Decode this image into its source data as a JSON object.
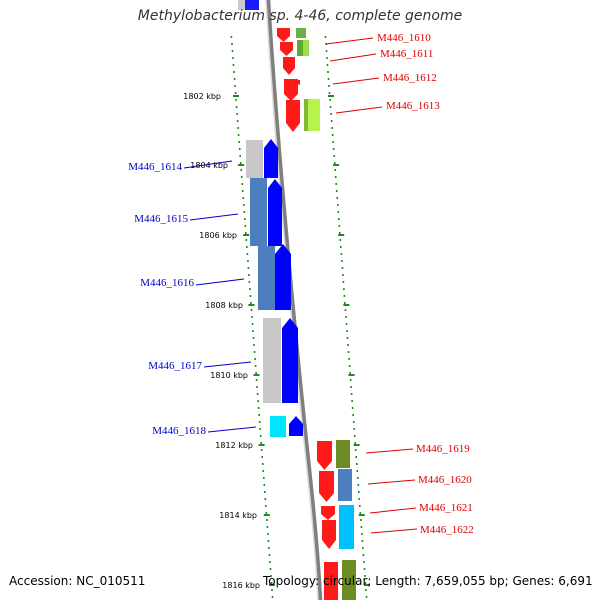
{
  "title": "Methylobacterium sp. 4-46, complete genome",
  "footer": {
    "accession": "Accession: NC_010511",
    "summary": "Topology: circular; Length: 7,659,055 bp; Genes: 6,691"
  },
  "colors": {
    "backbone": "#8c8c8c",
    "tick": "#1f8a1f",
    "reverse_gene": "#ff0000",
    "forward_gene": "#0000ff",
    "forward_label": "#0000cc",
    "reverse_label": "#dd0000",
    "ruler_label": "#000000"
  },
  "ruler": [
    {
      "label": "1802 kbp"
    },
    {
      "label": "1804 kbp"
    },
    {
      "label": "1806 kbp"
    },
    {
      "label": "1808 kbp"
    },
    {
      "label": "1810 kbp"
    },
    {
      "label": "1812 kbp"
    },
    {
      "label": "1814 kbp"
    },
    {
      "label": "1816 kbp"
    }
  ],
  "genes_reverse": [
    {
      "id": "M446_1610"
    },
    {
      "id": "M446_1611"
    },
    {
      "id": "M446_1612"
    },
    {
      "id": "M446_1613"
    },
    {
      "id": "M446_1619"
    },
    {
      "id": "M446_1620"
    },
    {
      "id": "M446_1621"
    },
    {
      "id": "M446_1622"
    }
  ],
  "genes_forward": [
    {
      "id": "M446_1614"
    },
    {
      "id": "M446_1615"
    },
    {
      "id": "M446_1616"
    },
    {
      "id": "M446_1617"
    },
    {
      "id": "M446_1618"
    }
  ]
}
